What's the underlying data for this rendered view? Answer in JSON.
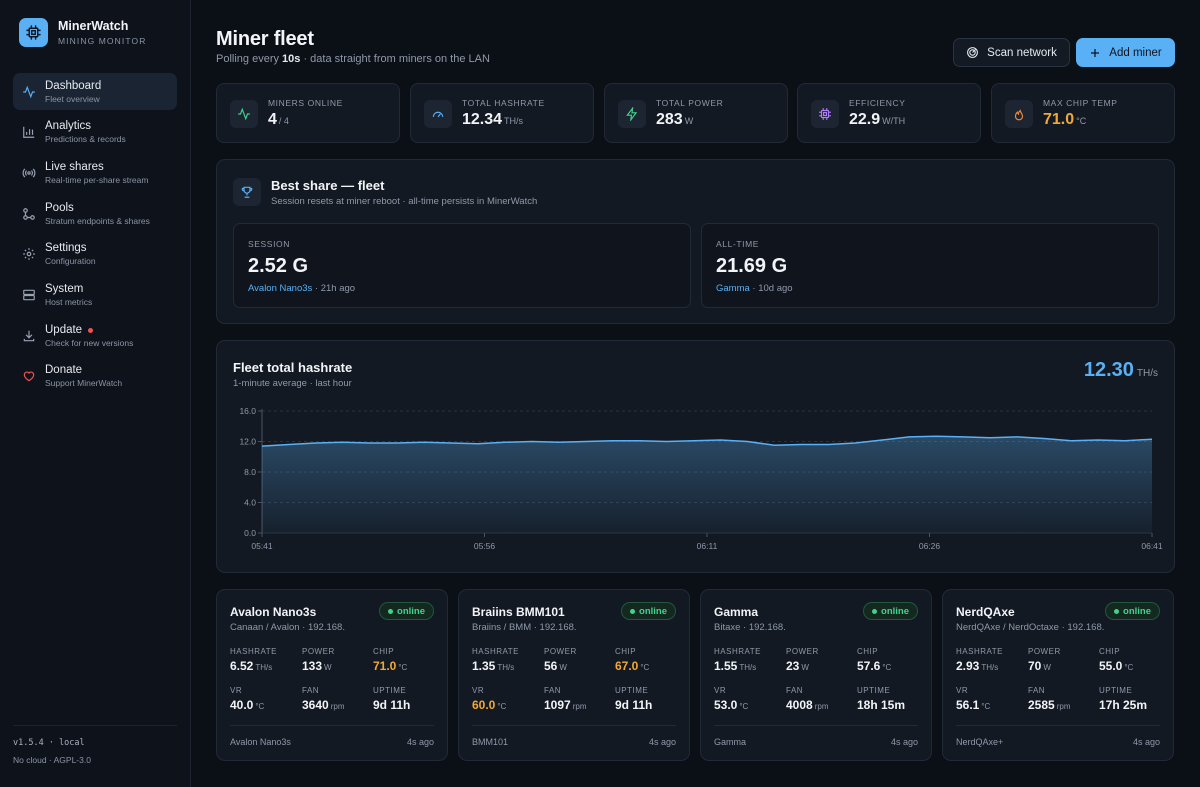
{
  "brand": {
    "name": "MinerWatch",
    "subtitle": "MINING MONITOR"
  },
  "nav": [
    {
      "label": "Dashboard",
      "desc": "Fleet overview",
      "icon": "activity-icon",
      "active": true
    },
    {
      "label": "Analytics",
      "desc": "Predictions & records",
      "icon": "bar-chart-icon"
    },
    {
      "label": "Live shares",
      "desc": "Real-time per-share stream",
      "icon": "broadcast-icon"
    },
    {
      "label": "Pools",
      "desc": "Stratum endpoints & shares",
      "icon": "network-icon"
    },
    {
      "label": "Settings",
      "desc": "Configuration",
      "icon": "gear-icon"
    },
    {
      "label": "System",
      "desc": "Host metrics",
      "icon": "server-icon"
    },
    {
      "label": "Update",
      "desc": "Check for new versions",
      "icon": "download-icon",
      "dot": true
    },
    {
      "label": "Donate",
      "desc": "Support MinerWatch",
      "icon": "heart-icon"
    }
  ],
  "footer": {
    "version": "v1.5.4 · local",
    "license": "No cloud · AGPL-3.0"
  },
  "header": {
    "title": "Miner fleet",
    "subtitle_pre": "Polling every ",
    "subtitle_interval": "10s",
    "subtitle_post": " · data straight from miners on the LAN",
    "scan_label": "Scan network",
    "add_label": "Add miner"
  },
  "stats": [
    {
      "label": "MINERS ONLINE",
      "value": "4",
      "unit": "/ 4",
      "icon": "activity-icon",
      "color": "#43d28b"
    },
    {
      "label": "TOTAL HASHRATE",
      "value": "12.34",
      "unit": "TH/s",
      "icon": "gauge-icon",
      "color": "#5ab0f5"
    },
    {
      "label": "TOTAL POWER",
      "value": "283",
      "unit": "W",
      "icon": "bolt-icon",
      "color": "#43d28b"
    },
    {
      "label": "EFFICIENCY",
      "value": "22.9",
      "unit": "W/TH",
      "icon": "chip-icon",
      "color": "#b07cf7"
    },
    {
      "label": "MAX CHIP TEMP",
      "value": "71.0",
      "unit": "°C",
      "icon": "flame-icon",
      "color": "#f08a3a",
      "value_color": "#f0a937"
    }
  ],
  "best_share": {
    "title": "Best share — fleet",
    "subtitle": "Session resets at miner reboot · all-time persists in MinerWatch",
    "session": {
      "label": "SESSION",
      "value": "2.52 G",
      "miner": "Avalon Nano3s",
      "ago": " · 21h ago"
    },
    "alltime": {
      "label": "ALL-TIME",
      "value": "21.69 G",
      "miner": "Gamma",
      "ago": " · 10d ago"
    }
  },
  "chart": {
    "title": "Fleet total hashrate",
    "subtitle": "1-minute average · last hour",
    "current_value": "12.30",
    "current_unit": "TH/s"
  },
  "chart_data": {
    "type": "area",
    "title": "Fleet total hashrate",
    "ylabel": "",
    "xlabel": "",
    "ylim": [
      0,
      16
    ],
    "yticks": [
      "0.0",
      "4.0",
      "8.0",
      "12.0",
      "16.0"
    ],
    "ytick_values": [
      0,
      4,
      8,
      12,
      16
    ],
    "xticks": [
      "05:41",
      "05:56",
      "06:11",
      "06:26",
      "06:41"
    ],
    "grid": true,
    "color": "#5ab0f5",
    "values": [
      11.4,
      11.6,
      11.8,
      11.9,
      11.8,
      11.8,
      11.9,
      11.8,
      11.7,
      11.9,
      12.0,
      11.9,
      12.0,
      12.1,
      12.1,
      12.0,
      12.1,
      12.2,
      12.0,
      11.5,
      11.6,
      11.6,
      11.8,
      12.2,
      12.6,
      12.7,
      12.6,
      12.5,
      12.6,
      12.4,
      12.1,
      12.2,
      12.1,
      12.3
    ]
  },
  "miners": [
    {
      "name": "Avalon Nano3s",
      "sub": "Canaan / Avalon · 192.168.",
      "status": "online",
      "hashrate": "6.52",
      "power": "133",
      "chip": "71.0",
      "chip_warn": true,
      "vr": "40.0",
      "vr_warn": false,
      "fan": "3640",
      "uptime": "9d 11h",
      "foot": "Avalon Nano3s",
      "ago": "4s ago"
    },
    {
      "name": "Braiins BMM101",
      "sub": "Braiins / BMM · 192.168.",
      "status": "online",
      "hashrate": "1.35",
      "power": "56",
      "chip": "67.0",
      "chip_warn": true,
      "vr": "60.0",
      "vr_warn": true,
      "fan": "1097",
      "uptime": "9d 11h",
      "foot": "BMM101",
      "ago": "4s ago"
    },
    {
      "name": "Gamma",
      "sub": "Bitaxe · 192.168.",
      "status": "online",
      "hashrate": "1.55",
      "power": "23",
      "chip": "57.6",
      "chip_warn": false,
      "vr": "53.0",
      "vr_warn": false,
      "fan": "4008",
      "uptime": "18h 15m",
      "foot": "Gamma",
      "ago": "4s ago"
    },
    {
      "name": "NerdQAxe",
      "sub": "NerdQAxe / NerdOctaxe · 192.168.",
      "status": "online",
      "hashrate": "2.93",
      "power": "70",
      "chip": "55.0",
      "chip_warn": false,
      "vr": "56.1",
      "vr_warn": false,
      "fan": "2585",
      "uptime": "17h 25m",
      "foot": "NerdQAxe+",
      "ago": "4s ago"
    }
  ],
  "miner_labels": {
    "hashrate": "HASHRATE",
    "power": "POWER",
    "chip": "CHIP",
    "vr": "VR",
    "fan": "FAN",
    "uptime": "UPTIME",
    "u_hash": "TH/s",
    "u_power": "W",
    "u_temp": "°C",
    "u_fan": "rpm"
  }
}
